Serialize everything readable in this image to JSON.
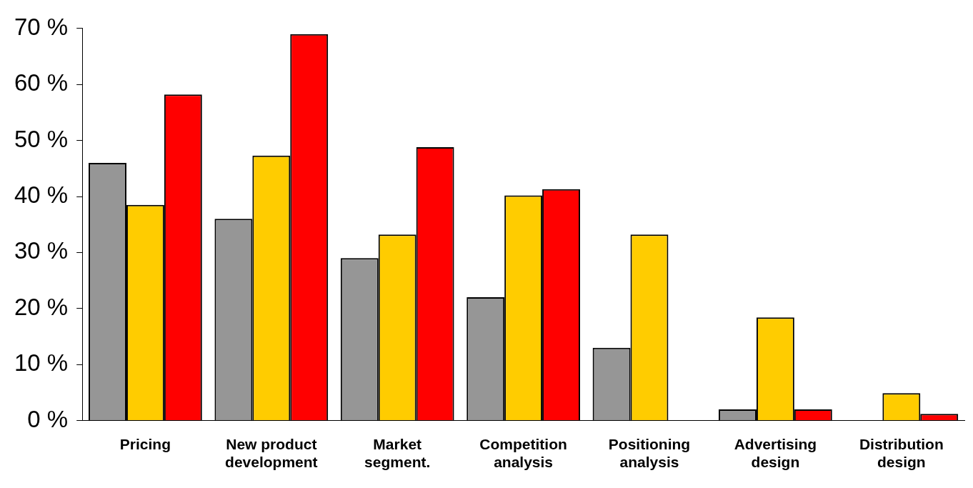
{
  "chart_data": {
    "type": "bar",
    "categories": [
      "Pricing",
      "New product development",
      "Market segment.",
      "Competition analysis",
      "Positioning analysis",
      "Advertising design",
      "Distribution design"
    ],
    "series": [
      {
        "color": "#969696",
        "values": [
          46,
          36,
          29,
          22,
          13,
          2,
          null
        ]
      },
      {
        "color": "#ffcc00",
        "values": [
          38.5,
          47.3,
          33.2,
          40.2,
          33.2,
          18.4,
          4.9
        ]
      },
      {
        "color": "#ff0000",
        "values": [
          58.2,
          69,
          48.8,
          41.3,
          null,
          2,
          1.2
        ]
      }
    ],
    "ylim": [
      0,
      70
    ],
    "yticks": [
      {
        "value": 0,
        "label": "0 %"
      },
      {
        "value": 10,
        "label": "10 %"
      },
      {
        "value": 20,
        "label": "20 %"
      },
      {
        "value": 30,
        "label": "30 %"
      },
      {
        "value": 40,
        "label": "40 %"
      },
      {
        "value": 50,
        "label": "50 %"
      },
      {
        "value": 60,
        "label": "60 %"
      },
      {
        "value": 70,
        "label": "70 %"
      }
    ],
    "grid": false,
    "legend": false
  }
}
